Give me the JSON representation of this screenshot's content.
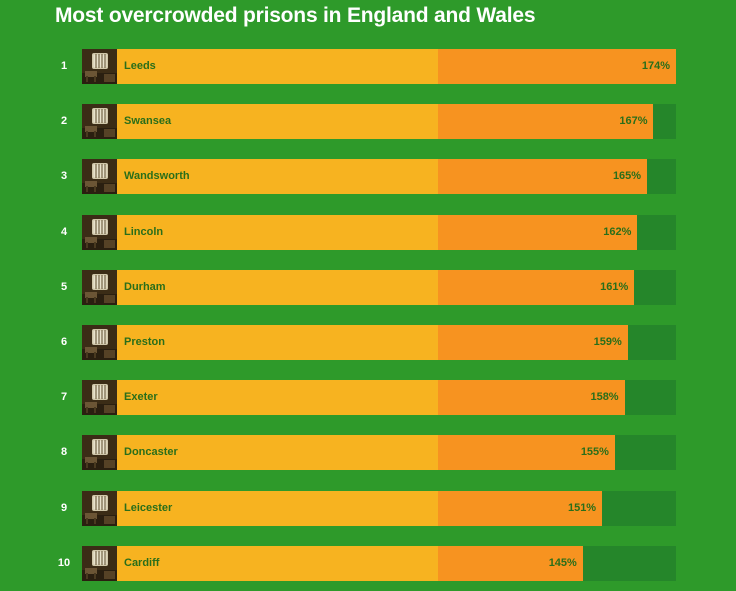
{
  "title": "Most overcrowded prisons in England and Wales",
  "colors": {
    "background": "#2e9a2a",
    "track": "#25862a",
    "capacity": "#f7b320",
    "overcrowding": "#f79320",
    "label_text": "#2a6e1a"
  },
  "icons": {
    "row_thumbnail": "prison-cell-icon"
  },
  "chart_data": {
    "type": "bar",
    "orientation": "horizontal",
    "title": "Most overcrowded prisons in England and Wales",
    "xlim": [
      0,
      174
    ],
    "baseline_value": 100,
    "categories": [
      "Leeds",
      "Swansea",
      "Wandsworth",
      "Lincoln",
      "Durham",
      "Preston",
      "Exeter",
      "Doncaster",
      "Leicester",
      "Cardiff"
    ],
    "ranks": [
      "1",
      "2",
      "3",
      "4",
      "5",
      "6",
      "7",
      "8",
      "9",
      "10"
    ],
    "values": [
      174,
      167,
      165,
      162,
      161,
      159,
      158,
      155,
      151,
      145
    ],
    "value_labels": [
      "174%",
      "167%",
      "165%",
      "162%",
      "161%",
      "159%",
      "158%",
      "155%",
      "151%",
      "145%"
    ],
    "grid": false,
    "legend": "none"
  }
}
